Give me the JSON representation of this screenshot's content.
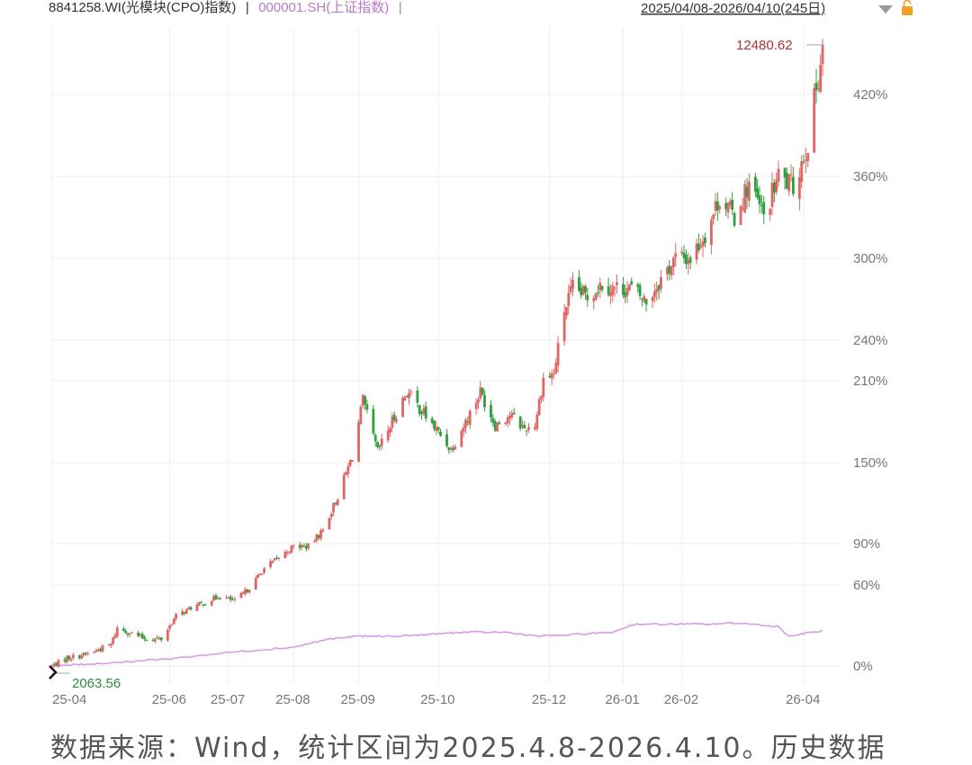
{
  "header": {
    "main_index": "8841258.WI(光模块(CPO)指数)",
    "separator": "|",
    "compare_index": "000001.SH(上证指数)",
    "compare_separator": "|",
    "date_range": "2025/04/08-2026/04/10(245日)",
    "icons": [
      "triangle-down-icon",
      "lock-icon"
    ]
  },
  "chart_data": {
    "type": "candlestick",
    "title": "8841258.WI(光模块(CPO)指数)",
    "series": [
      {
        "name": "8841258.WI(光模块(CPO)指数)",
        "kind": "candlestick",
        "unit": "percent change from 2025-04-08",
        "points": [
          {
            "x": "2025-04-08",
            "y": 0
          },
          {
            "x": "2025-04-15",
            "y": 6
          },
          {
            "x": "2025-04-25",
            "y": 9
          },
          {
            "x": "2025-05-06",
            "y": 16
          },
          {
            "x": "2025-05-09",
            "y": 28
          },
          {
            "x": "2025-05-16",
            "y": 24
          },
          {
            "x": "2025-05-23",
            "y": 20
          },
          {
            "x": "2025-05-30",
            "y": 20
          },
          {
            "x": "2025-06-06",
            "y": 37
          },
          {
            "x": "2025-06-13",
            "y": 43
          },
          {
            "x": "2025-06-20",
            "y": 47
          },
          {
            "x": "2025-06-27",
            "y": 52
          },
          {
            "x": "2025-07-04",
            "y": 48
          },
          {
            "x": "2025-07-11",
            "y": 58
          },
          {
            "x": "2025-07-18",
            "y": 72
          },
          {
            "x": "2025-07-25",
            "y": 80
          },
          {
            "x": "2025-08-01",
            "y": 88
          },
          {
            "x": "2025-08-08",
            "y": 88
          },
          {
            "x": "2025-08-15",
            "y": 100
          },
          {
            "x": "2025-08-22",
            "y": 125
          },
          {
            "x": "2025-08-29",
            "y": 155
          },
          {
            "x": "2025-09-03",
            "y": 195
          },
          {
            "x": "2025-09-10",
            "y": 158
          },
          {
            "x": "2025-09-17",
            "y": 180
          },
          {
            "x": "2025-09-24",
            "y": 202
          },
          {
            "x": "2025-09-30",
            "y": 190
          },
          {
            "x": "2025-10-15",
            "y": 160
          },
          {
            "x": "2025-10-22",
            "y": 180
          },
          {
            "x": "2025-10-29",
            "y": 202
          },
          {
            "x": "2025-11-05",
            "y": 178
          },
          {
            "x": "2025-11-12",
            "y": 185
          },
          {
            "x": "2025-11-19",
            "y": 175
          },
          {
            "x": "2025-11-24",
            "y": 178
          },
          {
            "x": "2025-11-28",
            "y": 212
          },
          {
            "x": "2025-12-03",
            "y": 215
          },
          {
            "x": "2025-12-08",
            "y": 262
          },
          {
            "x": "2025-12-12",
            "y": 278
          },
          {
            "x": "2025-12-19",
            "y": 272
          },
          {
            "x": "2025-12-26",
            "y": 282
          },
          {
            "x": "2025-12-31",
            "y": 278
          },
          {
            "x": "2026-01-09",
            "y": 278
          },
          {
            "x": "2026-01-16",
            "y": 268
          },
          {
            "x": "2026-01-23",
            "y": 285
          },
          {
            "x": "2026-01-30",
            "y": 300
          },
          {
            "x": "2026-02-06",
            "y": 300
          },
          {
            "x": "2026-02-13",
            "y": 318
          },
          {
            "x": "2026-02-20",
            "y": 345
          },
          {
            "x": "2026-02-27",
            "y": 330
          },
          {
            "x": "2026-03-06",
            "y": 355
          },
          {
            "x": "2026-03-13",
            "y": 330
          },
          {
            "x": "2026-03-20",
            "y": 360
          },
          {
            "x": "2026-03-27",
            "y": 352
          },
          {
            "x": "2026-04-03",
            "y": 385
          },
          {
            "x": "2026-04-10",
            "y": 455
          }
        ]
      },
      {
        "name": "000001.SH(上证指数)",
        "kind": "line",
        "unit": "percent change from 2025-04-08",
        "points": [
          {
            "x": "2025-04-08",
            "y": 0
          },
          {
            "x": "2025-05-01",
            "y": 2
          },
          {
            "x": "2025-06-01",
            "y": 5
          },
          {
            "x": "2025-07-01",
            "y": 10
          },
          {
            "x": "2025-08-01",
            "y": 14
          },
          {
            "x": "2025-08-18",
            "y": 20
          },
          {
            "x": "2025-09-01",
            "y": 22
          },
          {
            "x": "2025-09-15",
            "y": 22
          },
          {
            "x": "2025-10-01",
            "y": 23
          },
          {
            "x": "2025-10-20",
            "y": 25
          },
          {
            "x": "2025-11-10",
            "y": 25
          },
          {
            "x": "2025-11-25",
            "y": 22
          },
          {
            "x": "2025-12-10",
            "y": 23
          },
          {
            "x": "2025-12-31",
            "y": 25
          },
          {
            "x": "2026-01-10",
            "y": 31
          },
          {
            "x": "2026-01-25",
            "y": 31
          },
          {
            "x": "2026-02-15",
            "y": 31
          },
          {
            "x": "2026-03-01",
            "y": 32
          },
          {
            "x": "2026-03-20",
            "y": 29
          },
          {
            "x": "2026-03-25",
            "y": 22
          },
          {
            "x": "2026-04-01",
            "y": 24
          },
          {
            "x": "2026-04-10",
            "y": 26
          }
        ]
      }
    ],
    "y_axis": {
      "position": "right",
      "ticks": [
        "420%",
        "360%",
        "300%",
        "240%",
        "210%",
        "150%",
        "90%",
        "60%",
        "0%"
      ]
    },
    "x_axis": {
      "ticks": [
        "25-04",
        "25-06",
        "25-07",
        "25-08",
        "25-09",
        "25-10",
        "25-12",
        "26-01",
        "26-02",
        "26-04"
      ]
    },
    "annotations": {
      "max_value": "12480.62",
      "min_value": "2063.56"
    },
    "colors": {
      "up": "#e06666",
      "down": "#2e9e3e",
      "compare_line": "#d79ce8",
      "grid": "#efefef",
      "max_label": "#b03030",
      "min_label": "#2f8a3a"
    },
    "grid": true,
    "legend": "none",
    "xlim": [
      "2025-04-08",
      "2026-04-10"
    ]
  },
  "caption": "数据来源：Wind，统计区间为2025.4.8-2026.4.10。历史数据"
}
